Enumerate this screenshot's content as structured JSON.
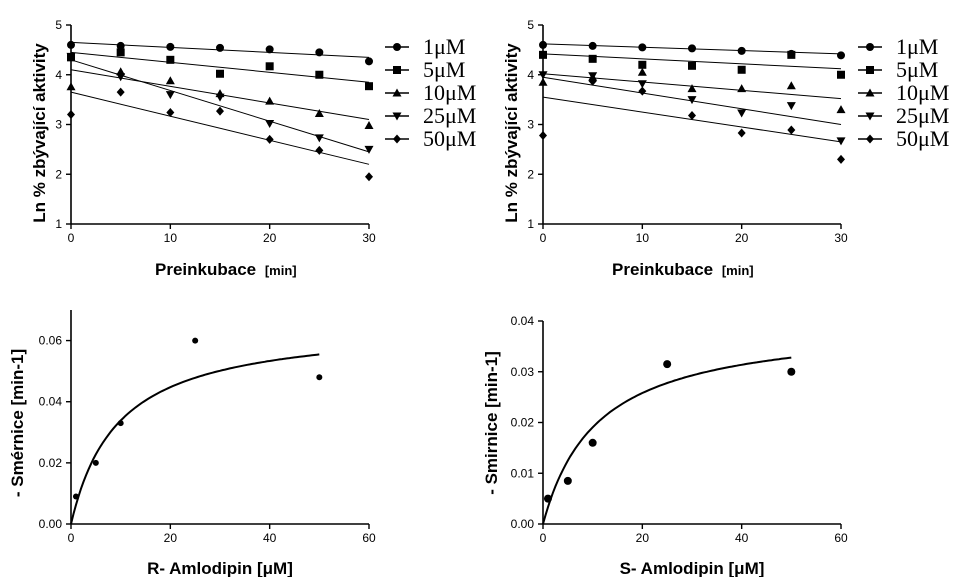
{
  "chart_data": [
    {
      "id": "top-left",
      "type": "scatter",
      "xlabel": "Preinkubace",
      "xunit": "[min]",
      "ylabel": "Ln % zbývající aktivity",
      "xlim": [
        0,
        30
      ],
      "ylim": [
        1,
        5
      ],
      "xticks": [
        "0",
        "10",
        "20",
        "30"
      ],
      "yticks": [
        "1",
        "2",
        "3",
        "4",
        "5"
      ],
      "legend_position": "right",
      "series": [
        {
          "name": "1μM",
          "marker": "circle",
          "x": [
            0,
            5,
            10,
            15,
            20,
            25,
            30
          ],
          "y": [
            4.6,
            4.58,
            4.56,
            4.54,
            4.51,
            4.45,
            4.27
          ],
          "fit": [
            4.65,
            4.35
          ]
        },
        {
          "name": "5μM",
          "marker": "square",
          "x": [
            0,
            5,
            10,
            15,
            20,
            25,
            30
          ],
          "y": [
            4.35,
            4.45,
            4.3,
            4.02,
            4.17,
            4.0,
            3.77
          ],
          "fit": [
            4.45,
            3.85
          ]
        },
        {
          "name": "10μM",
          "marker": "triangle-up",
          "x": [
            0,
            5,
            10,
            15,
            20,
            25,
            30
          ],
          "y": [
            3.76,
            4.06,
            3.88,
            3.62,
            3.47,
            3.22,
            2.98
          ],
          "fit": [
            4.1,
            3.1
          ]
        },
        {
          "name": "25μM",
          "marker": "triangle-down",
          "x": [
            0,
            5,
            10,
            15,
            20,
            25,
            30
          ],
          "y": [
            4.37,
            3.96,
            3.6,
            3.55,
            3.02,
            2.73,
            2.5
          ],
          "fit": [
            4.3,
            2.45
          ]
        },
        {
          "name": "50μM",
          "marker": "diamond",
          "x": [
            0,
            5,
            10,
            15,
            20,
            25,
            30
          ],
          "y": [
            3.2,
            3.65,
            3.24,
            3.27,
            2.7,
            2.48,
            1.95
          ],
          "fit": [
            3.65,
            2.2
          ]
        }
      ]
    },
    {
      "id": "top-right",
      "type": "scatter",
      "xlabel": "Preinkubace",
      "xunit": "[min]",
      "ylabel": "Ln % zbývající aktivity",
      "xlim": [
        0,
        30
      ],
      "ylim": [
        1,
        5
      ],
      "xticks": [
        "0",
        "10",
        "20",
        "30"
      ],
      "yticks": [
        "1",
        "2",
        "3",
        "4",
        "5"
      ],
      "legend_position": "right",
      "series": [
        {
          "name": "1μM",
          "marker": "circle",
          "x": [
            0,
            5,
            10,
            15,
            20,
            25,
            30
          ],
          "y": [
            4.6,
            4.58,
            4.55,
            4.53,
            4.48,
            4.42,
            4.39
          ],
          "fit": [
            4.62,
            4.42
          ]
        },
        {
          "name": "5μM",
          "marker": "square",
          "x": [
            0,
            5,
            10,
            15,
            20,
            25,
            30
          ],
          "y": [
            4.4,
            4.32,
            4.2,
            4.18,
            4.1,
            4.4,
            4.0
          ],
          "fit": [
            4.42,
            4.12
          ]
        },
        {
          "name": "10μM",
          "marker": "triangle-up",
          "x": [
            0,
            5,
            10,
            15,
            20,
            25,
            30
          ],
          "y": [
            3.85,
            3.95,
            4.05,
            3.72,
            3.72,
            3.78,
            3.3
          ],
          "fit": [
            4.02,
            3.52
          ]
        },
        {
          "name": "25μM",
          "marker": "triangle-down",
          "x": [
            0,
            5,
            10,
            15,
            20,
            25,
            30
          ],
          "y": [
            4.0,
            3.98,
            3.82,
            3.5,
            3.23,
            3.38,
            2.67
          ],
          "fit": [
            3.95,
            3.0
          ]
        },
        {
          "name": "50μM",
          "marker": "diamond",
          "x": [
            0,
            5,
            10,
            15,
            20,
            25,
            30
          ],
          "y": [
            2.78,
            3.87,
            3.67,
            3.18,
            2.83,
            2.89,
            2.3
          ],
          "fit": [
            3.55,
            2.65
          ]
        }
      ]
    },
    {
      "id": "bottom-left",
      "type": "scatter",
      "xlabel": "R- Amlodipin [μM]",
      "ylabel": "- Smérnice [min-1]",
      "xlim": [
        0,
        60
      ],
      "ylim": [
        0,
        0.07
      ],
      "xticks": [
        "0",
        "20",
        "40",
        "60"
      ],
      "yticks": [
        "0.00",
        "0.02",
        "0.04",
        "0.06"
      ],
      "series": [
        {
          "marker": "circle-small",
          "x": [
            1,
            5,
            10,
            25,
            50
          ],
          "y": [
            0.009,
            0.02,
            0.033,
            0.06,
            0.048
          ]
        }
      ],
      "curve": {
        "vmax": 0.066,
        "k": 9.5
      }
    },
    {
      "id": "bottom-right",
      "type": "scatter",
      "xlabel": "S- Amlodipin [μM]",
      "ylabel": "- Smirnice [min-1]",
      "xlim": [
        0,
        60
      ],
      "ylim": [
        0,
        0.04
      ],
      "xticks": [
        "0",
        "20",
        "40",
        "60"
      ],
      "yticks": [
        "0.00",
        "0.01",
        "0.02",
        "0.03",
        "0.04"
      ],
      "series": [
        {
          "marker": "circle",
          "x": [
            1,
            5,
            10,
            25,
            50
          ],
          "y": [
            0.005,
            0.0085,
            0.016,
            0.0315,
            0.03
          ]
        }
      ],
      "curve": {
        "vmax": 0.04,
        "k": 11
      }
    }
  ]
}
